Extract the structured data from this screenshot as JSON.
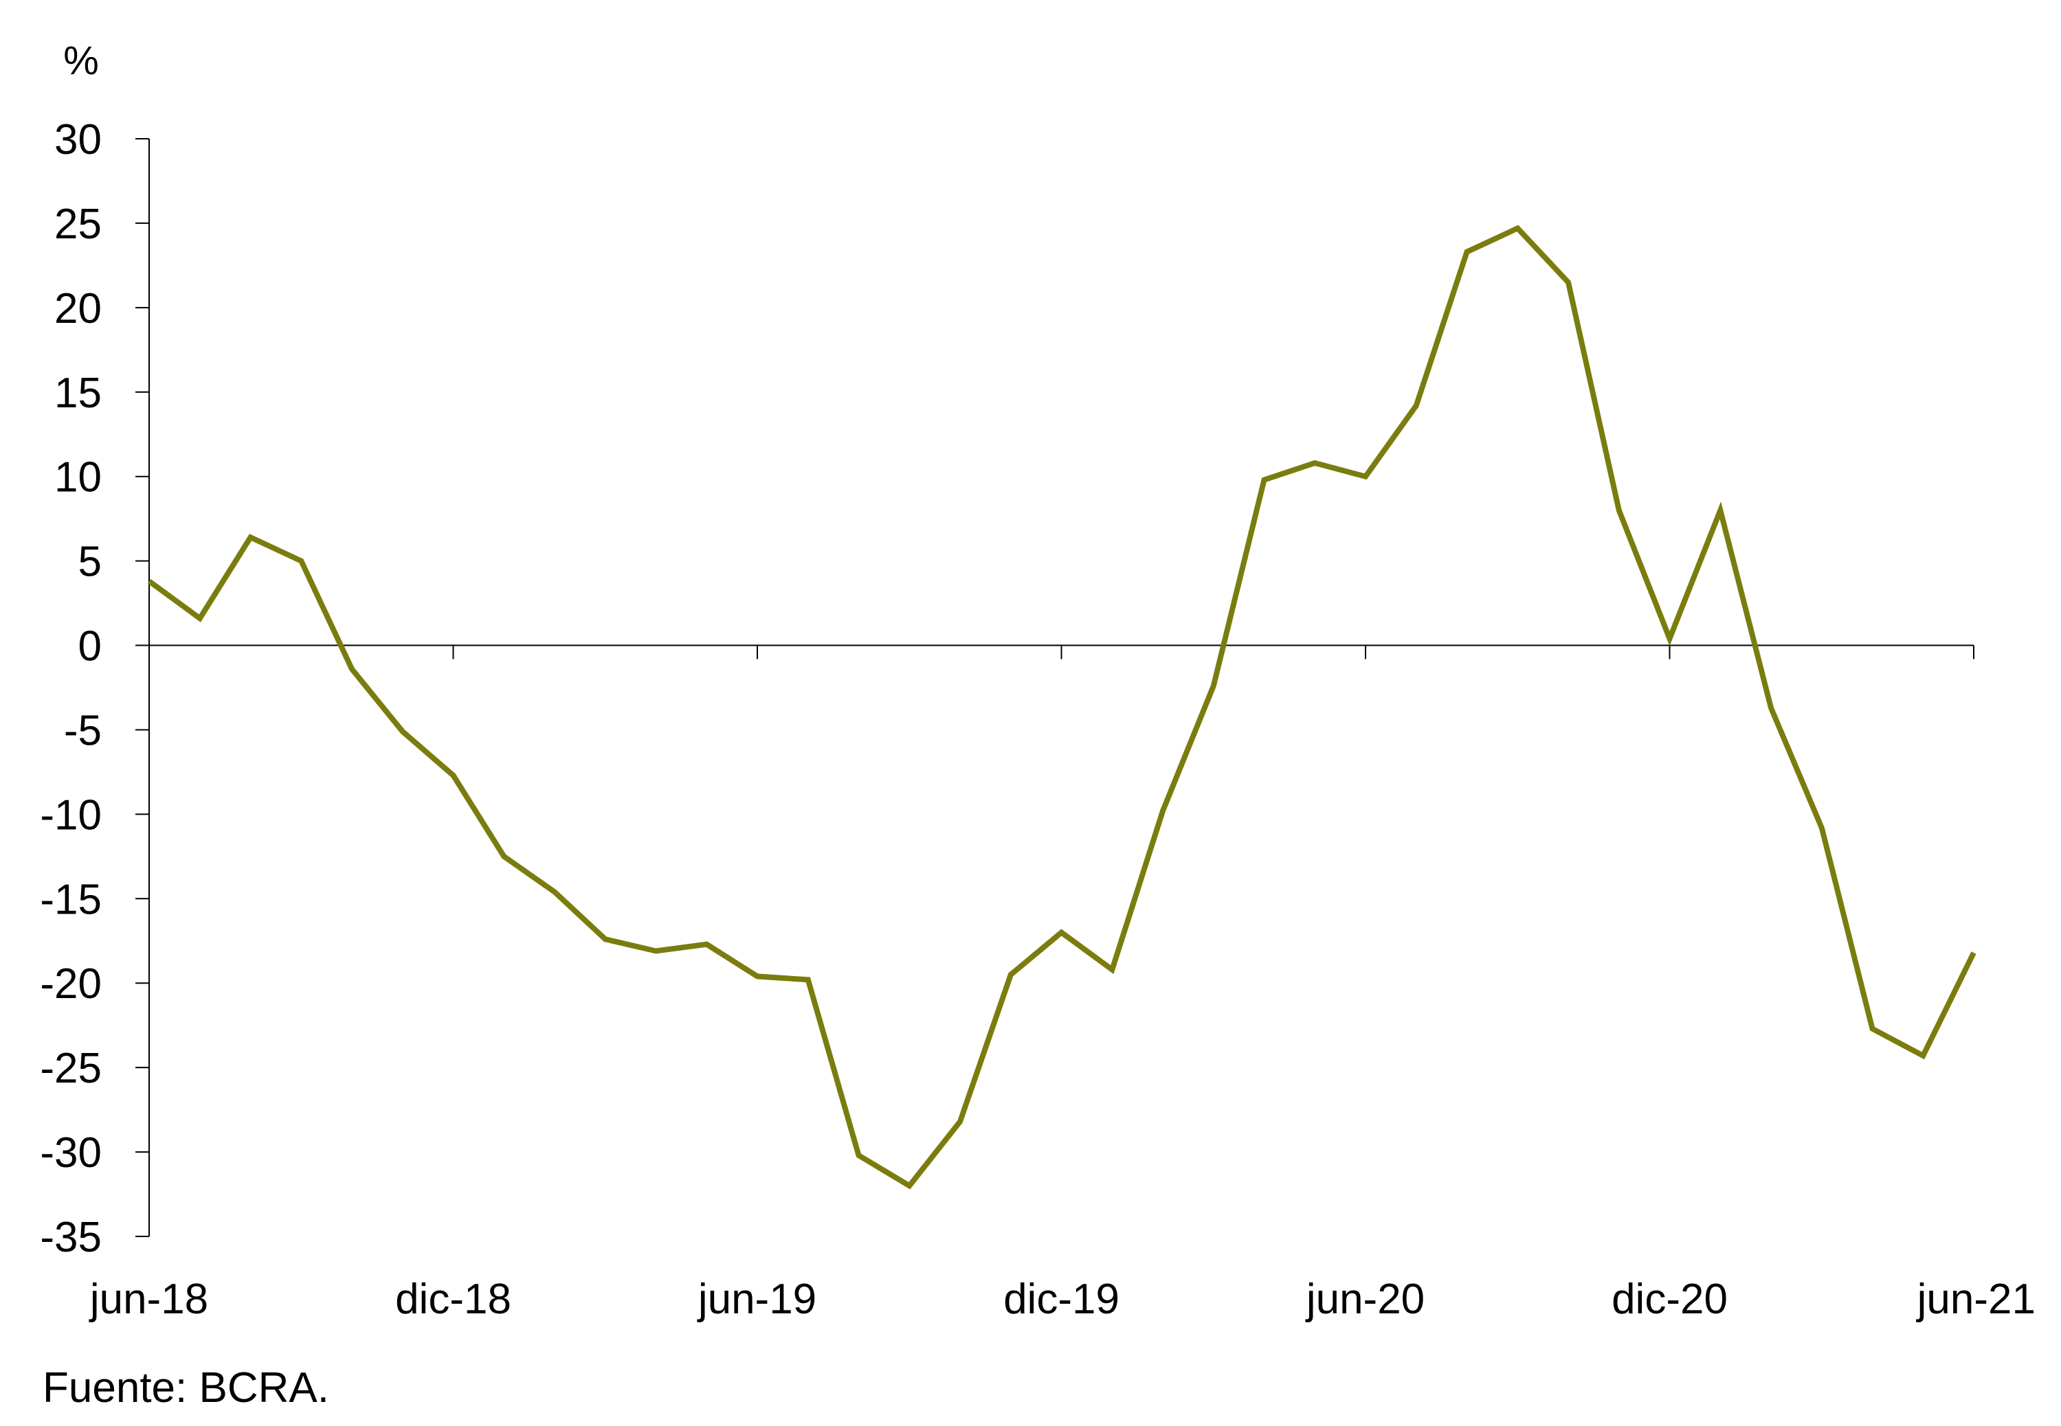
{
  "chart_data": {
    "type": "line",
    "title": "",
    "ylabel": "%",
    "xlabel": "",
    "ylim": [
      -35,
      30
    ],
    "yticks": [
      30,
      25,
      20,
      15,
      10,
      5,
      0,
      -5,
      -10,
      -15,
      -20,
      -25,
      -30,
      -35
    ],
    "xtick_labels": [
      "jun-18",
      "dic-18",
      "jun-19",
      "dic-19",
      "jun-20",
      "dic-20",
      "jun-21"
    ],
    "grid": false,
    "color": "#7a7d0e",
    "x": [
      "jun-18",
      "jul-18",
      "ago-18",
      "sep-18",
      "oct-18",
      "nov-18",
      "dic-18",
      "ene-19",
      "feb-19",
      "mar-19",
      "abr-19",
      "may-19",
      "jun-19",
      "jul-19",
      "ago-19",
      "sep-19",
      "oct-19",
      "nov-19",
      "dic-19",
      "ene-20",
      "feb-20",
      "mar-20",
      "abr-20",
      "may-20",
      "jun-20",
      "jul-20",
      "ago-20",
      "sep-20",
      "oct-20",
      "nov-20",
      "dic-20",
      "ene-21",
      "feb-21",
      "mar-21",
      "abr-21",
      "may-21",
      "jun-21"
    ],
    "series": [
      {
        "values": [
          3.8,
          1.6,
          6.4,
          5.0,
          -1.4,
          -5.1,
          -7.7,
          -12.5,
          -14.6,
          -17.4,
          -18.1,
          -17.7,
          -19.6,
          -19.8,
          -30.2,
          -32.0,
          -28.2,
          -19.5,
          -17.0,
          -19.2,
          -9.8,
          -2.4,
          9.8,
          10.8,
          10.0,
          14.2,
          23.3,
          24.7,
          21.5,
          8.0,
          0.4,
          8.0,
          -3.7,
          -10.8,
          -22.7,
          -24.3,
          -18.2
        ]
      }
    ]
  },
  "source_note": "Fuente: BCRA."
}
